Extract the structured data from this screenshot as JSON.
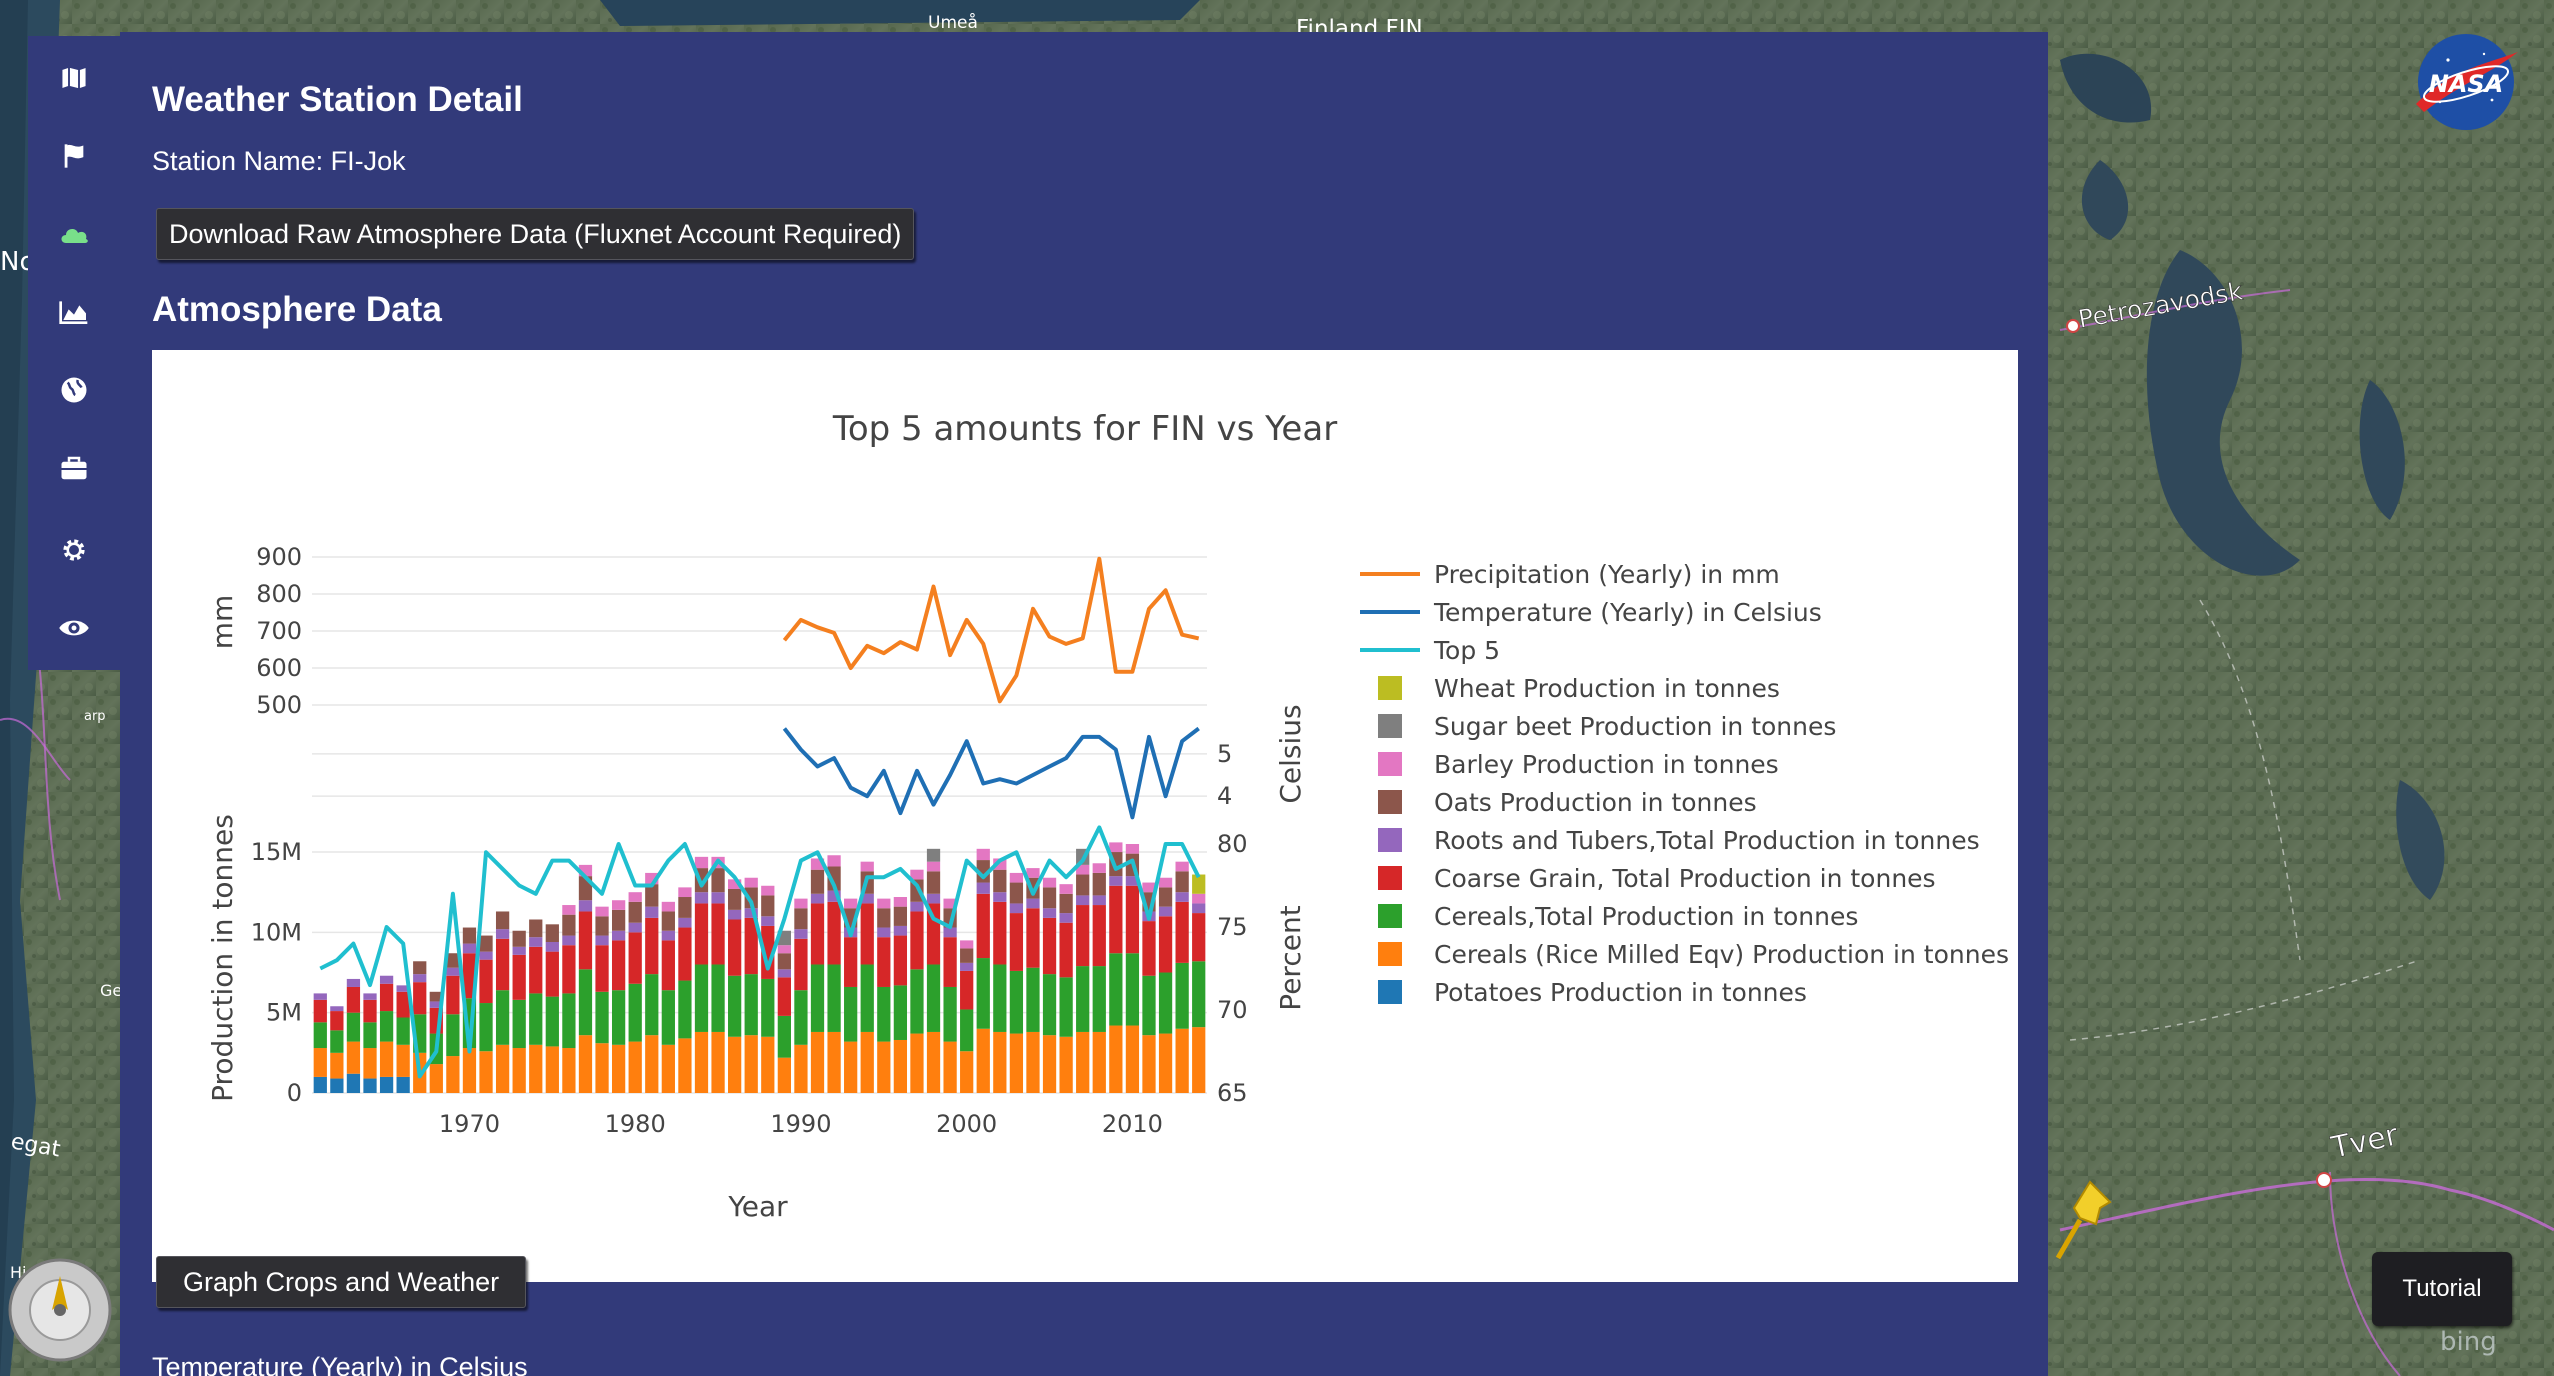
{
  "map": {
    "labels": {
      "umea": "Umeå",
      "finland": "Finland FIN",
      "petrozavodsk": "Petrozavodsk",
      "tver": "Tver",
      "left_no": "No",
      "left_arp": "arp",
      "left_ge": "Ge",
      "left_egat": "egat",
      "left_hi": "Hi"
    },
    "watermark": "bing"
  },
  "sidebar": {
    "items": [
      {
        "icon": "map-icon"
      },
      {
        "icon": "flag-icon"
      },
      {
        "icon": "cloud-icon"
      },
      {
        "icon": "area-chart-icon"
      },
      {
        "icon": "globe-icon"
      },
      {
        "icon": "briefcase-icon"
      },
      {
        "icon": "gear-icon"
      },
      {
        "icon": "eye-icon"
      }
    ],
    "active_color": "#79e08a"
  },
  "panel": {
    "title": "Weather Station Detail",
    "station_label": "Station Name: FI-Jok",
    "download_button": "Download Raw Atmosphere Data (Fluxnet Account Required)",
    "section_heading": "Atmosphere Data",
    "graph_button": "Graph Crops and Weather",
    "bottom_label": "Temperature (Yearly) in Celsius"
  },
  "nasa_logo_text": "NASA",
  "tutorial_button": "Tutorial",
  "chart_data": {
    "type": "bar",
    "title": "Top 5 amounts for FIN vs Year",
    "xlabel": "Year",
    "xlim": [
      1960.5,
      2014.5
    ],
    "x_ticks": [
      1970,
      1980,
      1990,
      2000,
      2010
    ],
    "y_axes": {
      "mm": {
        "label": "mm",
        "range": [
          500,
          900
        ],
        "ticks": [
          500,
          600,
          700,
          800,
          900
        ]
      },
      "celsius": {
        "label": "Celsius",
        "range": [
          3.2,
          5.8
        ],
        "ticks": [
          4,
          5
        ]
      },
      "production": {
        "label": "Production in tonnes",
        "range": [
          0,
          15500000
        ],
        "ticks": [
          0,
          5000000,
          10000000,
          15000000
        ],
        "tick_labels": [
          "0",
          "5M",
          "10M",
          "15M"
        ]
      },
      "percent": {
        "label": "Percent",
        "range": [
          65,
          80
        ],
        "ticks": [
          65,
          70,
          75,
          80
        ]
      }
    },
    "legend_position": "right",
    "series_colors": {
      "precip": "#f47f1f",
      "temp": "#1f6fb4",
      "top5": "#20bfcf",
      "wheat": "#bcbd22",
      "sugar": "#7f7f7f",
      "barley": "#e377c2",
      "oats": "#8c564b",
      "roots": "#9467bd",
      "coarse": "#d62728",
      "cereals": "#2ca02c",
      "rice": "#ff7f0e",
      "potatoes": "#1f77b4"
    },
    "legend": [
      {
        "key": "precip",
        "kind": "line",
        "label": "Precipitation (Yearly) in mm"
      },
      {
        "key": "temp",
        "kind": "line",
        "label": "Temperature (Yearly) in Celsius"
      },
      {
        "key": "top5",
        "kind": "line",
        "label": "Top 5"
      },
      {
        "key": "wheat",
        "kind": "box",
        "label": "Wheat Production in tonnes"
      },
      {
        "key": "sugar",
        "kind": "box",
        "label": "Sugar beet Production in tonnes"
      },
      {
        "key": "barley",
        "kind": "box",
        "label": "Barley Production in tonnes"
      },
      {
        "key": "oats",
        "kind": "box",
        "label": "Oats Production in tonnes"
      },
      {
        "key": "roots",
        "kind": "box",
        "label": "Roots and Tubers,Total Production in tonnes"
      },
      {
        "key": "coarse",
        "kind": "box",
        "label": "Coarse Grain, Total Production in tonnes"
      },
      {
        "key": "cereals",
        "kind": "box",
        "label": "Cereals,Total Production in tonnes"
      },
      {
        "key": "rice",
        "kind": "box",
        "label": "Cereals (Rice Milled Eqv) Production in tonnes"
      },
      {
        "key": "potatoes",
        "kind": "box",
        "label": "Potatoes Production in tonnes"
      }
    ],
    "bar_years": [
      1961,
      1962,
      1963,
      1964,
      1965,
      1966,
      1967,
      1968,
      1969,
      1970,
      1971,
      1972,
      1973,
      1974,
      1975,
      1976,
      1977,
      1978,
      1979,
      1980,
      1981,
      1982,
      1983,
      1984,
      1985,
      1986,
      1987,
      1988,
      1989,
      1990,
      1991,
      1992,
      1993,
      1994,
      1995,
      1996,
      1997,
      1998,
      1999,
      2000,
      2001,
      2002,
      2003,
      2004,
      2005,
      2006,
      2007,
      2008,
      2009,
      2010,
      2011,
      2012,
      2013,
      2014
    ],
    "bar_series": {
      "potatoes": [
        1.0,
        0.9,
        1.2,
        0.9,
        1.0,
        1.0,
        0,
        0,
        0,
        0,
        0,
        0,
        0,
        0,
        0,
        0,
        0,
        0,
        0,
        0,
        0,
        0,
        0,
        0,
        0,
        0,
        0,
        0,
        0,
        0,
        0,
        0,
        0,
        0,
        0,
        0,
        0,
        0,
        0,
        0,
        0,
        0,
        0,
        0,
        0,
        0,
        0,
        0,
        0,
        0,
        0,
        0,
        0,
        0
      ],
      "rice": [
        1.8,
        1.6,
        2.0,
        1.9,
        2.2,
        2.0,
        2.5,
        1.8,
        2.3,
        2.8,
        2.6,
        3.0,
        2.8,
        3.0,
        2.9,
        2.8,
        3.6,
        3.1,
        3.0,
        3.2,
        3.6,
        3.0,
        3.4,
        3.8,
        3.8,
        3.5,
        3.6,
        3.5,
        2.2,
        3.0,
        3.8,
        3.8,
        3.2,
        3.8,
        3.2,
        3.3,
        3.7,
        3.8,
        3.2,
        2.6,
        4.0,
        3.8,
        3.7,
        3.8,
        3.6,
        3.5,
        3.8,
        3.8,
        4.2,
        4.2,
        3.6,
        3.7,
        4.0,
        4.1
      ],
      "cereals": [
        1.6,
        1.4,
        1.8,
        1.6,
        1.9,
        1.7,
        2.4,
        1.9,
        2.6,
        3.1,
        3.0,
        3.4,
        3.0,
        3.2,
        3.1,
        3.4,
        4.1,
        3.2,
        3.4,
        3.6,
        3.8,
        3.4,
        3.6,
        4.2,
        4.2,
        3.8,
        3.8,
        3.6,
        2.6,
        3.4,
        4.2,
        4.2,
        3.4,
        4.2,
        3.4,
        3.4,
        4.0,
        4.2,
        3.4,
        2.6,
        4.4,
        4.2,
        3.9,
        4.0,
        3.8,
        3.7,
        4.1,
        4.1,
        4.5,
        4.5,
        3.7,
        3.8,
        4.1,
        4.1
      ],
      "coarse": [
        1.4,
        1.2,
        1.6,
        1.4,
        1.7,
        1.6,
        2.0,
        1.6,
        2.4,
        2.8,
        2.7,
        3.2,
        2.8,
        2.9,
        2.8,
        3.0,
        3.6,
        2.9,
        3.1,
        3.2,
        3.5,
        3.1,
        3.3,
        3.8,
        3.8,
        3.5,
        3.5,
        3.3,
        2.4,
        3.2,
        3.8,
        3.9,
        3.1,
        3.8,
        3.1,
        3.1,
        3.6,
        3.8,
        3.1,
        2.4,
        4.0,
        3.9,
        3.6,
        3.7,
        3.5,
        3.4,
        3.8,
        3.8,
        4.2,
        4.2,
        3.4,
        3.5,
        3.8,
        3.0
      ],
      "roots": [
        0.4,
        0.3,
        0.5,
        0.4,
        0.5,
        0.4,
        0.5,
        0.4,
        0.5,
        0.6,
        0.5,
        0.6,
        0.5,
        0.6,
        0.6,
        0.6,
        0.7,
        0.6,
        0.6,
        0.6,
        0.7,
        0.6,
        0.6,
        0.7,
        0.7,
        0.6,
        0.6,
        0.6,
        0.5,
        0.6,
        0.6,
        0.7,
        0.6,
        0.6,
        0.6,
        0.6,
        0.6,
        0.6,
        0.6,
        0.5,
        0.7,
        0.6,
        0.6,
        0.6,
        0.6,
        0.6,
        0.6,
        0.6,
        0.6,
        0.6,
        0.6,
        0.6,
        0.6,
        0.6
      ],
      "oats": [
        0,
        0,
        0,
        0,
        0,
        0,
        0.8,
        0.6,
        0.9,
        1.0,
        1.0,
        1.1,
        1.0,
        1.1,
        1.1,
        1.3,
        1.5,
        1.2,
        1.3,
        1.3,
        1.4,
        1.2,
        1.3,
        1.5,
        1.5,
        1.3,
        1.3,
        1.3,
        1.0,
        1.3,
        1.5,
        1.5,
        1.2,
        1.4,
        1.2,
        1.2,
        1.4,
        1.4,
        1.2,
        0.9,
        1.4,
        1.4,
        1.3,
        1.3,
        1.3,
        1.2,
        1.3,
        1.4,
        1.5,
        1.4,
        1.2,
        1.2,
        1.3,
        0
      ],
      "barley": [
        0,
        0,
        0,
        0,
        0,
        0,
        0,
        0,
        0,
        0,
        0,
        0,
        0,
        0,
        0,
        0.6,
        0.7,
        0.6,
        0.6,
        0.6,
        0.7,
        0.6,
        0.6,
        0.7,
        0.7,
        0.6,
        0.6,
        0.6,
        0.5,
        0.6,
        0.7,
        0.7,
        0.6,
        0.6,
        0.6,
        0.6,
        0.6,
        0.6,
        0.6,
        0.5,
        0.7,
        0.7,
        0.6,
        0.6,
        0.6,
        0.6,
        0.6,
        0.6,
        0.6,
        0.6,
        0.6,
        0.6,
        0.6,
        0.6
      ],
      "sugar": [
        0,
        0,
        0,
        0,
        0,
        0,
        0,
        0,
        0,
        0,
        0,
        0,
        0,
        0,
        0,
        0,
        0,
        0,
        0,
        0,
        0,
        0,
        0,
        0,
        0,
        0,
        0,
        0,
        0.9,
        0,
        0,
        0,
        0,
        0,
        0,
        0,
        0,
        0.8,
        0,
        0,
        0,
        0,
        0,
        0,
        0,
        0,
        1.0,
        0,
        0,
        0,
        0,
        0,
        0,
        0
      ],
      "wheat": [
        0,
        0,
        0,
        0,
        0,
        0,
        0,
        0,
        0,
        0,
        0,
        0,
        0,
        0,
        0,
        0,
        0,
        0,
        0,
        0,
        0,
        0,
        0,
        0,
        0,
        0,
        0,
        0,
        0,
        0,
        0,
        0,
        0,
        0,
        0,
        0,
        0,
        0,
        0,
        0,
        0,
        0,
        0,
        0,
        0,
        0,
        0,
        0,
        0,
        0,
        0,
        0,
        0,
        1.2
      ]
    },
    "bar_unit": "millions of tonnes",
    "top5": {
      "x": [
        1961,
        1962,
        1963,
        1964,
        1965,
        1966,
        1967,
        1968,
        1969,
        1970,
        1971,
        1972,
        1973,
        1974,
        1975,
        1976,
        1977,
        1978,
        1979,
        1980,
        1981,
        1982,
        1983,
        1984,
        1985,
        1986,
        1987,
        1988,
        1989,
        1990,
        1991,
        1992,
        1993,
        1994,
        1995,
        1996,
        1997,
        1998,
        1999,
        2000,
        2001,
        2002,
        2003,
        2004,
        2005,
        2006,
        2007,
        2008,
        2009,
        2010,
        2011,
        2012,
        2013,
        2014
      ],
      "y": [
        72.5,
        73.0,
        74.0,
        71.5,
        75.0,
        74.0,
        66.0,
        67.5,
        77.0,
        67.5,
        79.5,
        78.5,
        77.5,
        77.0,
        79.0,
        79.0,
        78.0,
        77.0,
        80.0,
        77.5,
        77.5,
        79.0,
        80.0,
        77.5,
        79.0,
        78.0,
        76.5,
        72.5,
        75.5,
        79.0,
        79.5,
        77.5,
        74.5,
        78.0,
        78.0,
        78.5,
        77.5,
        75.5,
        75.0,
        79.0,
        78.0,
        79.0,
        79.5,
        77.0,
        79.0,
        78.0,
        79.0,
        81.0,
        78.5,
        79.0,
        75.5,
        80.0,
        80.0,
        78.0
      ]
    },
    "precipitation": {
      "x": [
        1989,
        1990,
        1991,
        1992,
        1993,
        1994,
        1995,
        1996,
        1997,
        1998,
        1999,
        2000,
        2001,
        2002,
        2003,
        2004,
        2005,
        2006,
        2007,
        2008,
        2009,
        2010,
        2011,
        2012,
        2013,
        2014
      ],
      "y": [
        675,
        730,
        710,
        695,
        600,
        660,
        640,
        670,
        650,
        820,
        635,
        730,
        665,
        510,
        580,
        760,
        685,
        665,
        680,
        895,
        590,
        590,
        760,
        810,
        690,
        680
      ]
    },
    "temperature": {
      "x": [
        1989,
        1990,
        1991,
        1992,
        1993,
        1994,
        1995,
        1996,
        1997,
        1998,
        1999,
        2000,
        2001,
        2002,
        2003,
        2004,
        2005,
        2006,
        2007,
        2008,
        2009,
        2010,
        2011,
        2012,
        2013,
        2014
      ],
      "y": [
        5.6,
        5.1,
        4.7,
        4.9,
        4.2,
        4.0,
        4.6,
        3.6,
        4.6,
        3.8,
        4.5,
        5.3,
        4.3,
        4.4,
        4.3,
        4.5,
        4.7,
        4.9,
        5.4,
        5.4,
        5.1,
        3.5,
        5.4,
        4.0,
        5.3,
        5.6
      ]
    }
  }
}
